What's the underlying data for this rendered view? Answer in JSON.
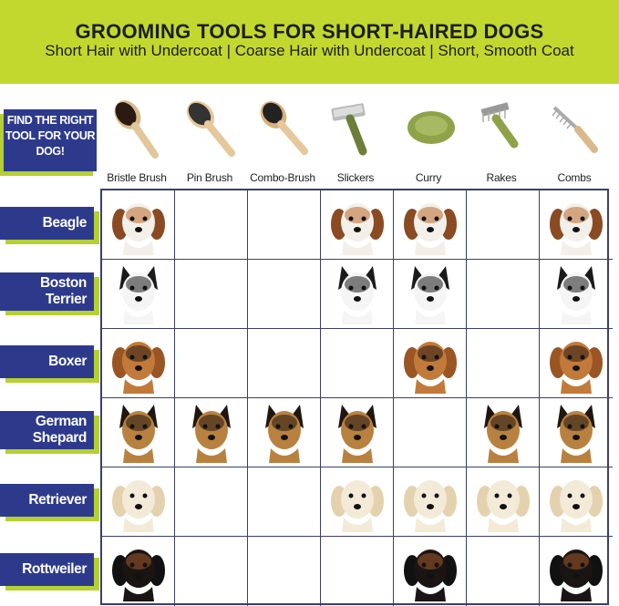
{
  "header": {
    "title_prefix": "GROOMING TOOLS FOR ",
    "title_bold": "SHORT-HAIRED DOGS",
    "subtitle": "Short Hair with Undercoat | Coarse Hair with Undercoat | Short, Smooth Coat"
  },
  "callout": {
    "lines": [
      "FIND THE RIGHT",
      "TOOL FOR YOUR",
      "DOG!"
    ]
  },
  "colors": {
    "header_green": "#c3d82e",
    "label_navy": "#2d3a8c",
    "accent_green": "#b6cf32",
    "grid": "#3a3f6b"
  },
  "tools": [
    {
      "label": "Bristle Brush",
      "icon": "bristle-brush-icon"
    },
    {
      "label": "Pin Brush",
      "icon": "pin-brush-icon"
    },
    {
      "label": "Combo-Brush",
      "icon": "combo-brush-icon"
    },
    {
      "label": "Slickers",
      "icon": "slicker-brush-icon"
    },
    {
      "label": "Curry",
      "icon": "curry-brush-icon"
    },
    {
      "label": "Rakes",
      "icon": "rake-icon"
    },
    {
      "label": "Combs",
      "icon": "comb-icon"
    }
  ],
  "breeds": [
    {
      "lines": [
        "Beagle"
      ],
      "tools": [
        1,
        0,
        0,
        1,
        1,
        0,
        1
      ]
    },
    {
      "lines": [
        "Boston",
        "Terrier"
      ],
      "tools": [
        1,
        0,
        0,
        1,
        1,
        0,
        1
      ]
    },
    {
      "lines": [
        "Boxer"
      ],
      "tools": [
        1,
        0,
        0,
        0,
        1,
        0,
        1
      ]
    },
    {
      "lines": [
        "German",
        "Shepard"
      ],
      "tools": [
        1,
        1,
        1,
        1,
        0,
        1,
        1
      ]
    },
    {
      "lines": [
        "Retriever"
      ],
      "tools": [
        1,
        0,
        0,
        1,
        1,
        1,
        1
      ]
    },
    {
      "lines": [
        "Rottweiler"
      ],
      "tools": [
        1,
        0,
        0,
        0,
        1,
        0,
        1
      ]
    }
  ]
}
